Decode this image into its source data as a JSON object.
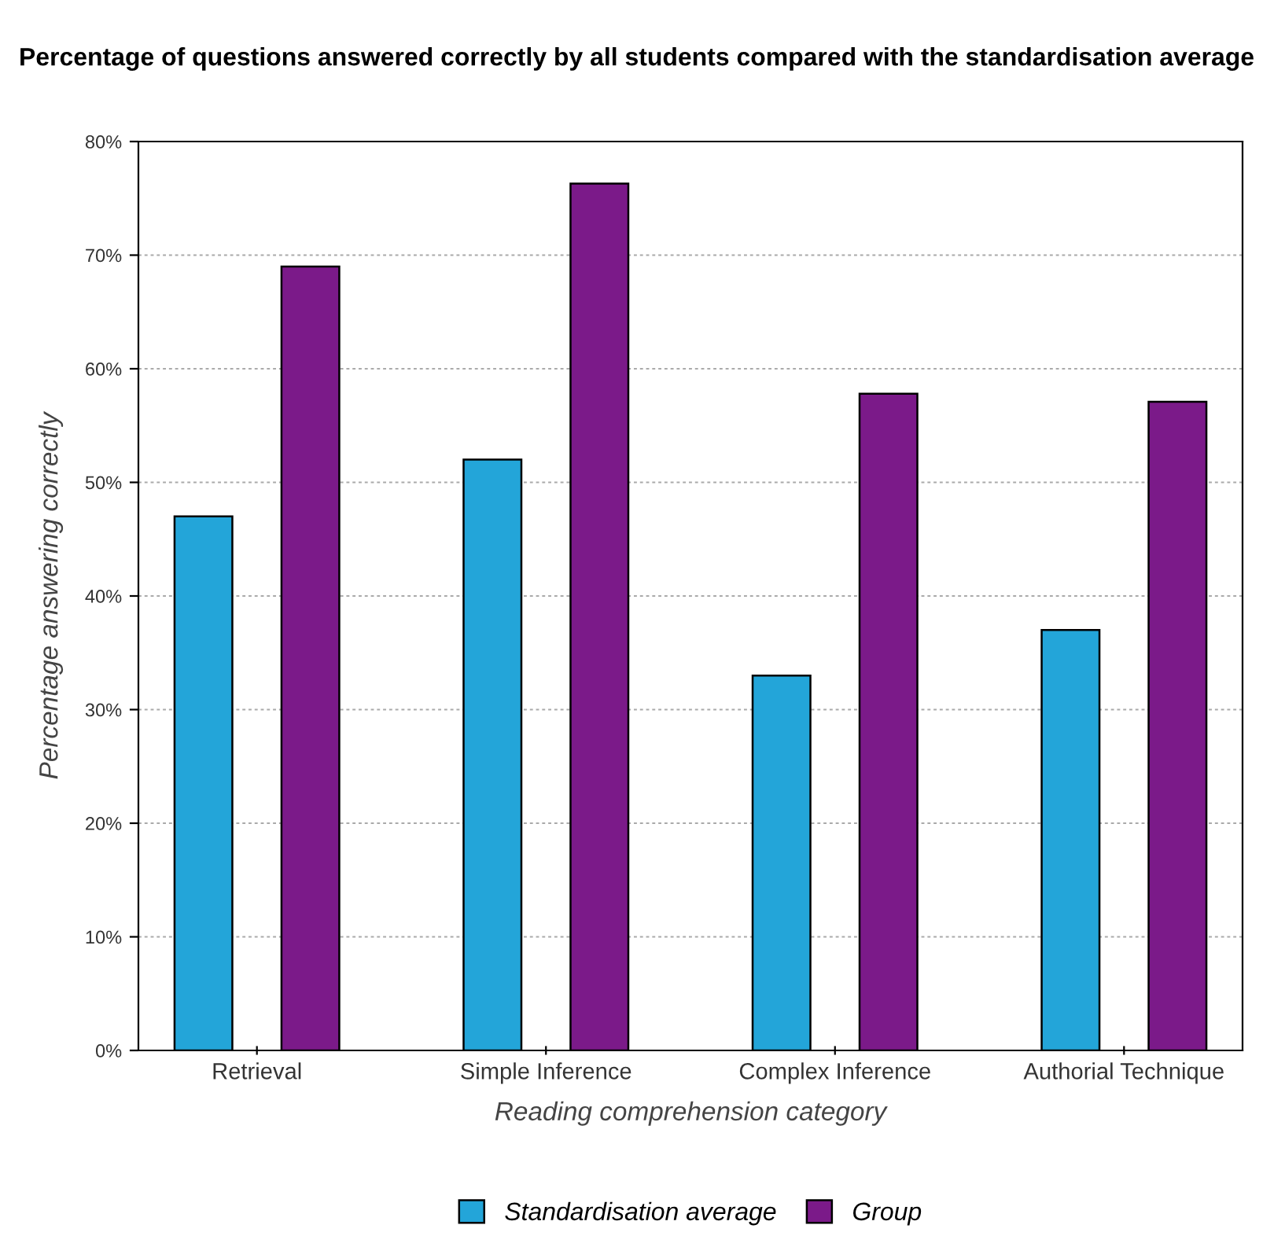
{
  "chart_data": {
    "type": "bar",
    "title": "Percentage of questions answered correctly by all students compared with the standardisation average",
    "xlabel": "Reading comprehension category",
    "ylabel": "Percentage answering correctly",
    "categories": [
      "Retrieval",
      "Simple Inference",
      "Complex Inference",
      "Authorial Technique"
    ],
    "series": [
      {
        "name": "Standardisation average",
        "color": "#23a5d9",
        "values": [
          47,
          52,
          33,
          37
        ]
      },
      {
        "name": "Group",
        "color": "#7b1a89",
        "values": [
          69,
          76.3,
          57.8,
          57.1
        ]
      }
    ],
    "ylim": [
      0,
      80
    ],
    "yticks": [
      {
        "value": 0,
        "label": "0%"
      },
      {
        "value": 10,
        "label": "10%"
      },
      {
        "value": 20,
        "label": "20%"
      },
      {
        "value": 30,
        "label": "30%"
      },
      {
        "value": 40,
        "label": "40%"
      },
      {
        "value": 50,
        "label": "50%"
      },
      {
        "value": 60,
        "label": "60%"
      },
      {
        "value": 70,
        "label": "70%"
      },
      {
        "value": 80,
        "label": "80%"
      }
    ],
    "grid": "y",
    "legend": "bottom"
  }
}
